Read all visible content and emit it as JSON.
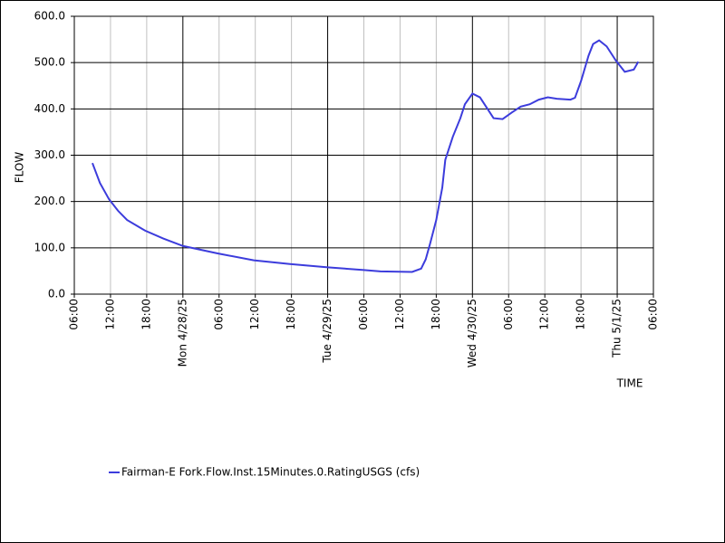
{
  "chart_data": {
    "type": "line",
    "xlabel": "TIME",
    "ylabel": "FLOW",
    "grid": true,
    "legend": "bottom-left",
    "x": [
      "2025-04-27T09:00",
      "2025-04-27T10:15",
      "2025-04-27T11:45",
      "2025-04-27T13:15",
      "2025-04-27T14:45",
      "2025-04-27T17:45",
      "2025-04-27T20:45",
      "2025-04-28T00:00",
      "2025-04-28T05:45",
      "2025-04-28T11:45",
      "2025-04-28T17:45",
      "2025-04-29T00:00",
      "2025-04-29T06:00",
      "2025-04-29T08:45",
      "2025-04-29T14:00",
      "2025-04-29T15:30",
      "2025-04-29T16:15",
      "2025-04-29T17:00",
      "2025-04-29T18:00",
      "2025-04-29T19:00",
      "2025-04-29T19:30",
      "2025-04-29T20:45",
      "2025-04-29T22:00",
      "2025-04-29T22:45",
      "2025-04-30T00:00",
      "2025-04-30T01:15",
      "2025-04-30T02:30",
      "2025-04-30T03:30",
      "2025-04-30T05:00",
      "2025-04-30T06:30",
      "2025-04-30T08:00",
      "2025-04-30T09:30",
      "2025-04-30T11:00",
      "2025-04-30T12:30",
      "2025-04-30T14:00",
      "2025-04-30T16:15",
      "2025-04-30T17:00",
      "2025-04-30T18:00",
      "2025-04-30T19:15",
      "2025-04-30T20:00",
      "2025-04-30T21:00",
      "2025-04-30T22:15",
      "2025-04-30T23:45",
      "2025-05-01T01:15",
      "2025-05-01T02:45",
      "2025-05-01T03:30"
    ],
    "series": [
      {
        "name": "Fairman-E Fork.Flow.Inst.15Minutes.0.RatingUSGS (cfs)",
        "color": "#3c3cdc",
        "values": [
          283,
          240,
          205,
          180,
          160,
          137,
          120,
          104,
          88,
          73,
          65,
          58,
          52,
          49,
          48,
          55,
          75,
          110,
          160,
          230,
          290,
          340,
          380,
          410,
          433,
          425,
          400,
          380,
          378,
          392,
          405,
          410,
          420,
          425,
          422,
          420,
          424,
          460,
          515,
          540,
          548,
          535,
          505,
          480,
          485,
          502
        ]
      }
    ],
    "xlim": [
      "2025-04-27T06:00",
      "2025-05-01T06:00"
    ],
    "xticks": [
      {
        "value": "2025-04-27T06:00",
        "label": "06:00"
      },
      {
        "value": "2025-04-27T12:00",
        "label": "12:00"
      },
      {
        "value": "2025-04-27T18:00",
        "label": "18:00"
      },
      {
        "value": "2025-04-28T00:00",
        "label": "Mon 4/28/25"
      },
      {
        "value": "2025-04-28T06:00",
        "label": "06:00"
      },
      {
        "value": "2025-04-28T12:00",
        "label": "12:00"
      },
      {
        "value": "2025-04-28T18:00",
        "label": "18:00"
      },
      {
        "value": "2025-04-29T00:00",
        "label": "Tue 4/29/25"
      },
      {
        "value": "2025-04-29T06:00",
        "label": "06:00"
      },
      {
        "value": "2025-04-29T12:00",
        "label": "12:00"
      },
      {
        "value": "2025-04-29T18:00",
        "label": "18:00"
      },
      {
        "value": "2025-04-30T00:00",
        "label": "Wed 4/30/25"
      },
      {
        "value": "2025-04-30T06:00",
        "label": "06:00"
      },
      {
        "value": "2025-04-30T12:00",
        "label": "12:00"
      },
      {
        "value": "2025-04-30T18:00",
        "label": "18:00"
      },
      {
        "value": "2025-05-01T00:00",
        "label": "Thu 5/1/25"
      },
      {
        "value": "2025-05-01T06:00",
        "label": "06:00"
      }
    ],
    "ylim": [
      0,
      600
    ],
    "yticks": [
      {
        "value": 0,
        "label": "0.0"
      },
      {
        "value": 100,
        "label": "100.0"
      },
      {
        "value": 200,
        "label": "200.0"
      },
      {
        "value": 300,
        "label": "300.0"
      },
      {
        "value": 400,
        "label": "400.0"
      },
      {
        "value": 500,
        "label": "500.0"
      },
      {
        "value": 600,
        "label": "600.0"
      }
    ]
  }
}
